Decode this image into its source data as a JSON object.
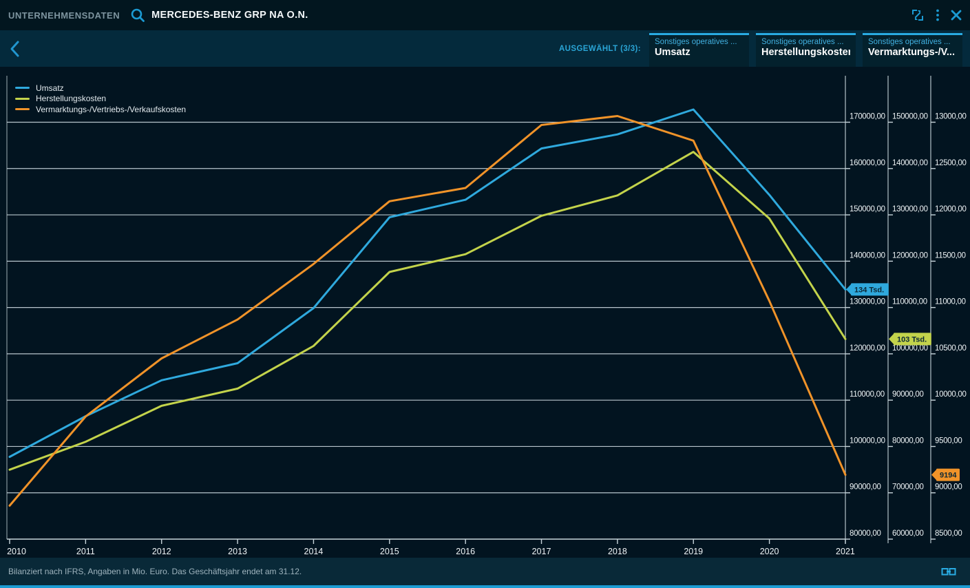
{
  "header": {
    "app_label": "UNTERNEHMENSDATEN",
    "instrument": "MERCEDES-BENZ GRP NA O.N.",
    "icons": {
      "search": "magnifier",
      "expand": "diagonal-resize-arrows",
      "menu": "kebab-vertical-dots",
      "close": "x-cross",
      "back": "chevron-left",
      "footer_link": "linked-windows"
    }
  },
  "selection_bar": {
    "selected_label": "AUSGEWÄHLT (3/3):",
    "tabs": [
      {
        "category": "Sonstiges operatives ...",
        "label": "Umsatz"
      },
      {
        "category": "Sonstiges operatives ...",
        "label": "Herstellungskosten"
      },
      {
        "category": "Sonstiges operatives ...",
        "label": "Vermarktungs-/V..."
      }
    ]
  },
  "colors": {
    "accent_blue": "#29abe2",
    "grid_line": "#c9d6dc",
    "badge_text": "#0b2836",
    "footer_bar_line": "#1d9cd3"
  },
  "chart_data": {
    "type": "line",
    "x": [
      2010,
      2011,
      2012,
      2013,
      2014,
      2015,
      2016,
      2017,
      2018,
      2019,
      2020,
      2021
    ],
    "xlabel": "",
    "ylabel": "",
    "grid": true,
    "legend_position": "top-left",
    "series": [
      {
        "name": "Umsatz",
        "color": "#2fa9dd",
        "axis": 0,
        "values": [
          97761,
          106540,
          114297,
          117982,
          129872,
          149467,
          153261,
          164330,
          167362,
          172745,
          154309,
          133893
        ],
        "end_label": "134 Tsd."
      },
      {
        "name": "Herstellungskosten",
        "color": "#c3d34b",
        "axis": 1,
        "values": [
          74988,
          81023,
          88784,
          92500,
          101688,
          117670,
          121500,
          129800,
          134200,
          143600,
          129200,
          103200
        ],
        "end_label": "103 Tsd."
      },
      {
        "name": "Vermarktungs-/Vertriebs-/Verkaufskosten",
        "color": "#f09329",
        "axis": 2,
        "values": [
          8861,
          9824,
          10451,
          10870,
          11470,
          12147,
          12290,
          12970,
          13067,
          12801,
          11070,
          9194
        ],
        "end_label": "9194"
      }
    ],
    "axes": [
      {
        "side": "right",
        "max": 170000,
        "min": 80000,
        "step": 10000,
        "tick_suffix": ",00"
      },
      {
        "side": "right",
        "max": 150000,
        "min": 60000,
        "step": 10000,
        "tick_suffix": ",00"
      },
      {
        "side": "right",
        "max": 13000,
        "min": 8500,
        "step": 500,
        "tick_suffix": ",00"
      }
    ]
  },
  "footer": {
    "note": "Bilanziert nach IFRS, Angaben in Mio. Euro. Das Geschäftsjahr endet am 31.12."
  }
}
